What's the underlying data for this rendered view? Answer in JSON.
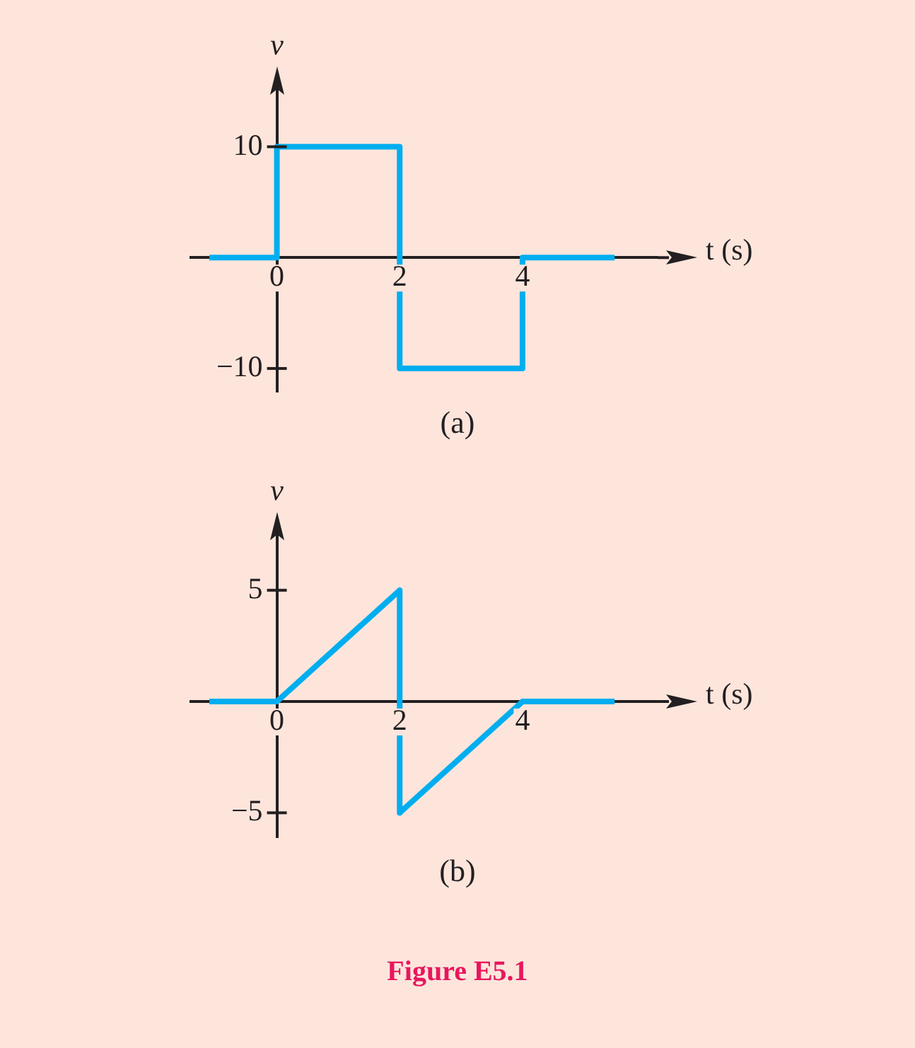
{
  "chart_data": [
    {
      "type": "line",
      "xlabel": "t (s)",
      "ylabel": "v",
      "annotations": [
        "(a)"
      ],
      "series": [
        {
          "color": "#00aeef",
          "x": [
            -1.1,
            0,
            0,
            2,
            2,
            4,
            4,
            5.5
          ],
          "values": [
            0,
            0,
            10,
            10,
            -10,
            -10,
            0,
            0
          ]
        }
      ],
      "xlim": [
        -1.4,
        6.2
      ],
      "ylim": [
        -12.1,
        15.2
      ],
      "xticks": [
        0,
        2,
        4
      ],
      "yticks": [
        10,
        {
          "value": -10,
          "label": "−10"
        }
      ],
      "grid": false,
      "legend": false,
      "marker": "none"
    },
    {
      "type": "line",
      "xlabel": "t (s)",
      "ylabel": "v",
      "annotations": [
        "(b)",
        "Figure E5.1"
      ],
      "series": [
        {
          "color": "#00aeef",
          "x": [
            -1.1,
            0,
            2,
            2,
            4,
            5.5
          ],
          "values": [
            0,
            0,
            5,
            -5,
            0,
            0
          ]
        }
      ],
      "xlim": [
        -1.4,
        6.2
      ],
      "ylim": [
        -6.1,
        7.5
      ],
      "xticks": [
        0,
        2,
        4
      ],
      "yticks": [
        5,
        {
          "value": -5,
          "label": "−5"
        }
      ],
      "grid": false,
      "legend": false,
      "marker": "none"
    }
  ]
}
